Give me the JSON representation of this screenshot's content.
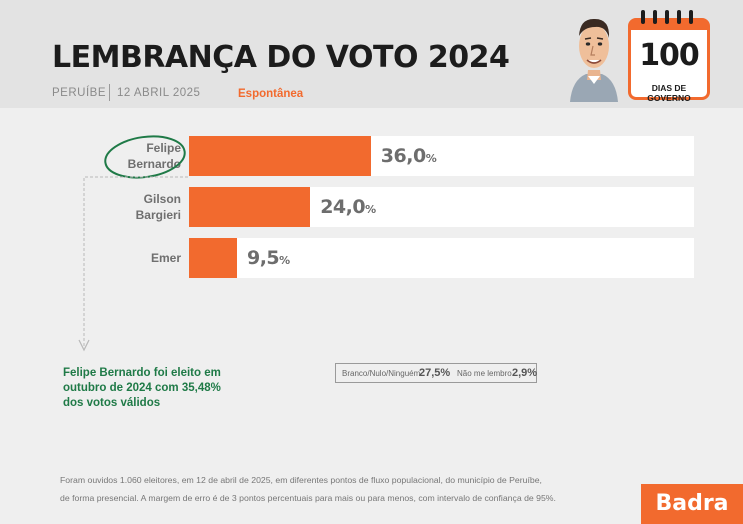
{
  "header": {
    "title": "LEMBRANÇA DO VOTO 2024",
    "city": "PERUÍBE",
    "date": "12 ABRIL 2025",
    "type": "Espontânea"
  },
  "badge": {
    "number": "100",
    "subtitle": "DIAS DE GOVERNO"
  },
  "chart_data": {
    "type": "bar",
    "orientation": "horizontal",
    "xlim": [
      0,
      100
    ],
    "categories": [
      "Felipe\nBernardo",
      "Gilson\nBargieri",
      "Emer"
    ],
    "values": [
      36.0,
      24.0,
      9.5
    ],
    "value_labels": [
      "36,0",
      "24,0",
      "9,5"
    ],
    "unit": "%",
    "highlight": "Felipe\nBernardo",
    "colors": {
      "bar": "#f26a2e",
      "track": "#ffffff",
      "highlight": "#1f7a47"
    }
  },
  "others": [
    {
      "label": "Branco/Nulo/Ninguém",
      "value": "27,5%"
    },
    {
      "label": "Não me lembro",
      "value": "2,9%"
    }
  ],
  "note": "Felipe Bernardo foi eleito em outubro de 2024 com 35,48% dos votos válidos",
  "footnote": {
    "line1": "Foram ouvidos 1.060 eleitores, em 12 de abril de 2025, em diferentes pontos de fluxo populacional, do município de Peruíbe,",
    "line2": "de forma presencial. A margem de erro é de 3 pontos percentuais para mais ou para menos, com intervalo de confiança de 95%."
  },
  "brand": "Badra"
}
